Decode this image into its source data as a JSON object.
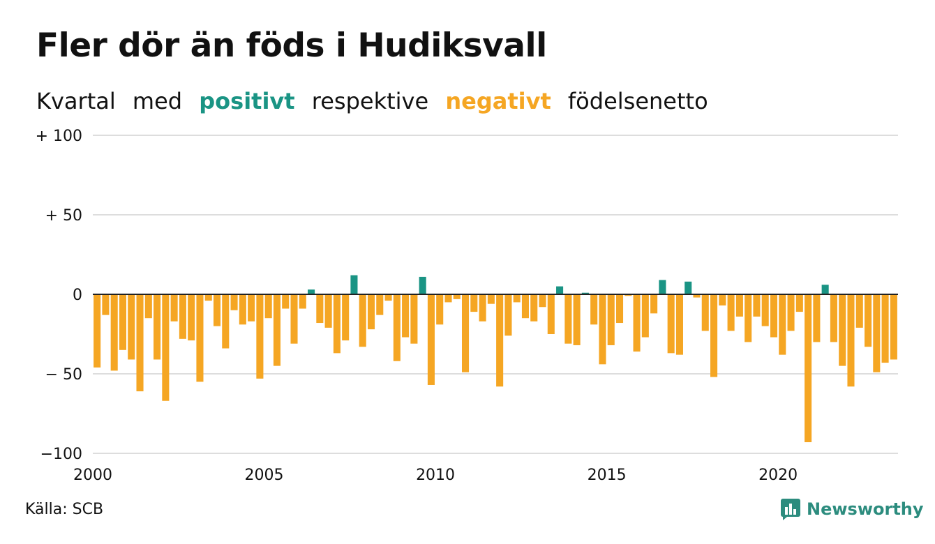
{
  "title": "Fler dör än föds i Hudiksvall",
  "subtitle": {
    "part1": "Kvartal",
    "part2": "med",
    "positive": "positivt",
    "part3": "respektive",
    "negative": "negativt",
    "part4": "födelsenetto"
  },
  "source": "Källa: SCB",
  "brand": "Newsworthy",
  "colors": {
    "positive": "#1a9484",
    "negative": "#f5a623",
    "grid": "#dddddd",
    "zero": "#222222",
    "brand": "#2c8c7e"
  },
  "chart_data": {
    "type": "bar",
    "ylim": [
      -100,
      100
    ],
    "xlim": [
      2000,
      2023.5
    ],
    "yticks": [
      {
        "value": 100,
        "label": "+ 100"
      },
      {
        "value": 50,
        "label": "+  50"
      },
      {
        "value": 0,
        "label": "0"
      },
      {
        "value": -50,
        "label": "− 50"
      },
      {
        "value": -100,
        "label": "−100"
      }
    ],
    "xticks": [
      "2000",
      "2005",
      "2010",
      "2015",
      "2020"
    ],
    "x_start": "2000 Q1",
    "values": [
      -46,
      -13,
      -48,
      -35,
      -41,
      -61,
      -15,
      -41,
      -67,
      -17,
      -28,
      -29,
      -55,
      -4,
      -20,
      -34,
      -10,
      -19,
      -17,
      -53,
      -15,
      -45,
      -9,
      -31,
      -9,
      3,
      -18,
      -21,
      -37,
      -29,
      12,
      -33,
      -22,
      -13,
      -4,
      -42,
      -27,
      -31,
      11,
      -57,
      -19,
      -5,
      -3,
      -49,
      -11,
      -17,
      -6,
      -58,
      -26,
      -5,
      -15,
      -17,
      -8,
      -25,
      5,
      -31,
      -32,
      1,
      -19,
      -44,
      -32,
      -18,
      -1,
      -36,
      -27,
      -12,
      9,
      -37,
      -38,
      8,
      -2,
      -23,
      -52,
      -7,
      -23,
      -14,
      -30,
      -14,
      -20,
      -27,
      -38,
      -23,
      -11,
      -93,
      -30,
      6,
      -30,
      -45,
      -58,
      -21,
      -33,
      -49,
      -43,
      -41
    ],
    "grid": true
  }
}
